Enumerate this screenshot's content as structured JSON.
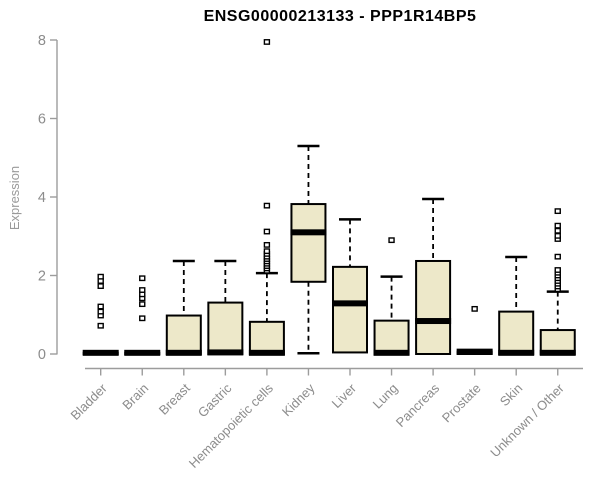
{
  "title": "ENSG00000213133 - PPP1R14BP5",
  "chart_data": {
    "type": "boxplot",
    "title": "ENSG00000213133 - PPP1R14BP5",
    "xlabel": "",
    "ylabel": "Expression",
    "ylim": [
      0,
      8
    ],
    "yticks": [
      0,
      2,
      4,
      6,
      8
    ],
    "grid": false,
    "legend": "none",
    "categories": [
      "Bladder",
      "Brain",
      "Breast",
      "Gastric",
      "Hematopoietic cells",
      "Kidney",
      "Liver",
      "Lung",
      "Pancreas",
      "Prostate",
      "Skin",
      "Unknown / Other"
    ],
    "boxes": [
      {
        "label": "Bladder",
        "q1": 0,
        "median": 0.03,
        "q3": 0.03,
        "whisker_low": 0,
        "whisker_high": 0.03,
        "outliers": [
          0.72,
          0.98,
          1.08,
          1.21,
          1.73,
          1.86,
          1.97
        ]
      },
      {
        "label": "Brain",
        "q1": 0,
        "median": 0.03,
        "q3": 0.03,
        "whisker_low": 0,
        "whisker_high": 0.03,
        "outliers": [
          0.91,
          1.27,
          1.42,
          1.52,
          1.63,
          1.93
        ]
      },
      {
        "label": "Breast",
        "q1": 0,
        "median": 0.03,
        "q3": 0.98,
        "whisker_low": 0,
        "whisker_high": 2.37,
        "outliers": []
      },
      {
        "label": "Gastric",
        "q1": 0,
        "median": 0.04,
        "q3": 1.31,
        "whisker_low": 0,
        "whisker_high": 2.37,
        "outliers": []
      },
      {
        "label": "Hematopoietic cells",
        "q1": 0,
        "median": 0.03,
        "q3": 0.82,
        "whisker_low": 0,
        "whisker_high": 2.06,
        "outliers": [
          2.12,
          2.18,
          2.24,
          2.3,
          2.36,
          2.42,
          2.48,
          2.55,
          2.62,
          2.78,
          3.12,
          3.78,
          7.95
        ]
      },
      {
        "label": "Kidney",
        "q1": 1.84,
        "median": 3.1,
        "q3": 3.82,
        "whisker_low": 0.02,
        "whisker_high": 5.3,
        "outliers": []
      },
      {
        "label": "Liver",
        "q1": 0.04,
        "median": 1.29,
        "q3": 2.22,
        "whisker_low": 0,
        "whisker_high": 3.43,
        "outliers": []
      },
      {
        "label": "Lung",
        "q1": 0,
        "median": 0.03,
        "q3": 0.85,
        "whisker_low": 0,
        "whisker_high": 1.97,
        "outliers": [
          2.9
        ]
      },
      {
        "label": "Pancreas",
        "q1": 0,
        "median": 0.84,
        "q3": 2.37,
        "whisker_low": 0,
        "whisker_high": 3.95,
        "outliers": []
      },
      {
        "label": "Prostate",
        "q1": 0,
        "median": 0.06,
        "q3": 0.06,
        "whisker_low": 0,
        "whisker_high": 0.06,
        "outliers": [
          1.15
        ]
      },
      {
        "label": "Skin",
        "q1": 0,
        "median": 0.03,
        "q3": 1.08,
        "whisker_low": 0,
        "whisker_high": 2.47,
        "outliers": []
      },
      {
        "label": "Unknown / Other",
        "q1": 0,
        "median": 0.03,
        "q3": 0.61,
        "whisker_low": 0,
        "whisker_high": 1.59,
        "outliers": [
          1.65,
          1.72,
          1.79,
          1.86,
          1.93,
          2.0,
          2.07,
          2.14,
          2.48,
          2.93,
          3.01,
          3.14,
          3.27,
          3.64
        ]
      }
    ],
    "colors": {
      "box_fill": "#EDE8C9",
      "box_border": "#000000",
      "median": "#000000",
      "whisker": "#000000",
      "outlier_stroke": "#000000",
      "outlier_fill": "#FFFFFF",
      "axis_line": "#9C9C9C",
      "tick_text": "#8C8C8C",
      "title_text": "#000000"
    }
  }
}
